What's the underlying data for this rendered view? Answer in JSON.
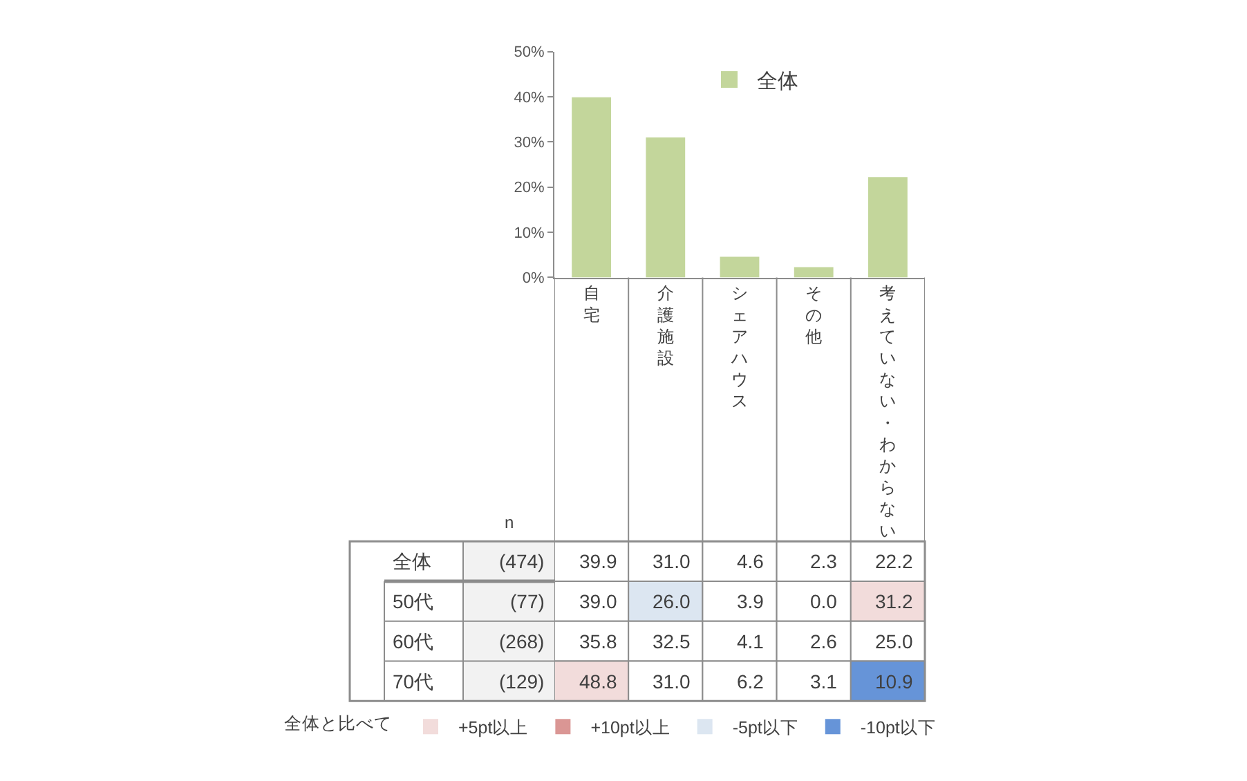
{
  "chart_data": [
    {
      "type": "bar",
      "categories": [
        "自宅",
        "介護施設",
        "シェアハウス",
        "その他",
        "考えていない・わからない"
      ],
      "series": [
        {
          "name": "全体",
          "color": "#c3d69b",
          "values": [
            39.9,
            31.0,
            4.6,
            2.3,
            22.2
          ]
        }
      ],
      "ylim": [
        0,
        50
      ],
      "yticks": [
        {
          "value": 0,
          "label": "0%"
        },
        {
          "value": 10,
          "label": "10%"
        },
        {
          "value": 20,
          "label": "20%"
        },
        {
          "value": 30,
          "label": "30%"
        },
        {
          "value": 40,
          "label": "40%"
        },
        {
          "value": 50,
          "label": "50%"
        }
      ],
      "legend": "top"
    },
    {
      "type": "heatmap",
      "categories": [
        null,
        null,
        null,
        null,
        null
      ],
      "y_categories": [
        "全体",
        "50代",
        "60代",
        "70代"
      ],
      "y2_categories": [
        "(474)",
        "(77)",
        "(268)",
        "(129)"
      ],
      "y2label": "n",
      "cells": [
        [
          39.9,
          31.0,
          4.6,
          2.3,
          22.2
        ],
        [
          39.0,
          26.0,
          3.9,
          0.0,
          31.2
        ],
        [
          35.8,
          32.5,
          4.1,
          2.6,
          25.0
        ],
        [
          48.8,
          31.0,
          6.2,
          3.1,
          10.9
        ]
      ],
      "cell_labels": [
        [
          "39.9",
          "31.0",
          "4.6",
          "2.3",
          "22.2"
        ],
        [
          "39.0",
          "26.0",
          "3.9",
          "0.0",
          "31.2"
        ],
        [
          "35.8",
          "32.5",
          "4.1",
          "2.6",
          "25.0"
        ],
        [
          "48.8",
          "31.0",
          "6.2",
          "3.1",
          "10.9"
        ]
      ],
      "colors": [
        [
          null,
          null,
          null,
          null,
          null
        ],
        [
          null,
          "#dce6f1",
          null,
          null,
          "#f2dcdb"
        ],
        [
          null,
          null,
          null,
          null,
          null
        ],
        [
          "#f2dcdb",
          null,
          null,
          null,
          "#6694d8"
        ]
      ],
      "legend_title": "全体と比べて",
      "series": [
        {
          "name": "+5pt以上",
          "color": "#f2dcdb",
          "values": [
            null,
            null,
            null,
            null,
            null
          ]
        },
        {
          "name": "+10pt以上",
          "color": "#da9694",
          "values": [
            null,
            null,
            null,
            null,
            null
          ]
        },
        {
          "name": "-5pt以下",
          "color": "#dce6f1",
          "values": [
            null,
            null,
            null,
            null,
            null
          ]
        },
        {
          "name": "-10pt以下",
          "color": "#6694d8",
          "values": [
            null,
            null,
            null,
            null,
            null
          ]
        }
      ],
      "legend": "bottom"
    }
  ]
}
